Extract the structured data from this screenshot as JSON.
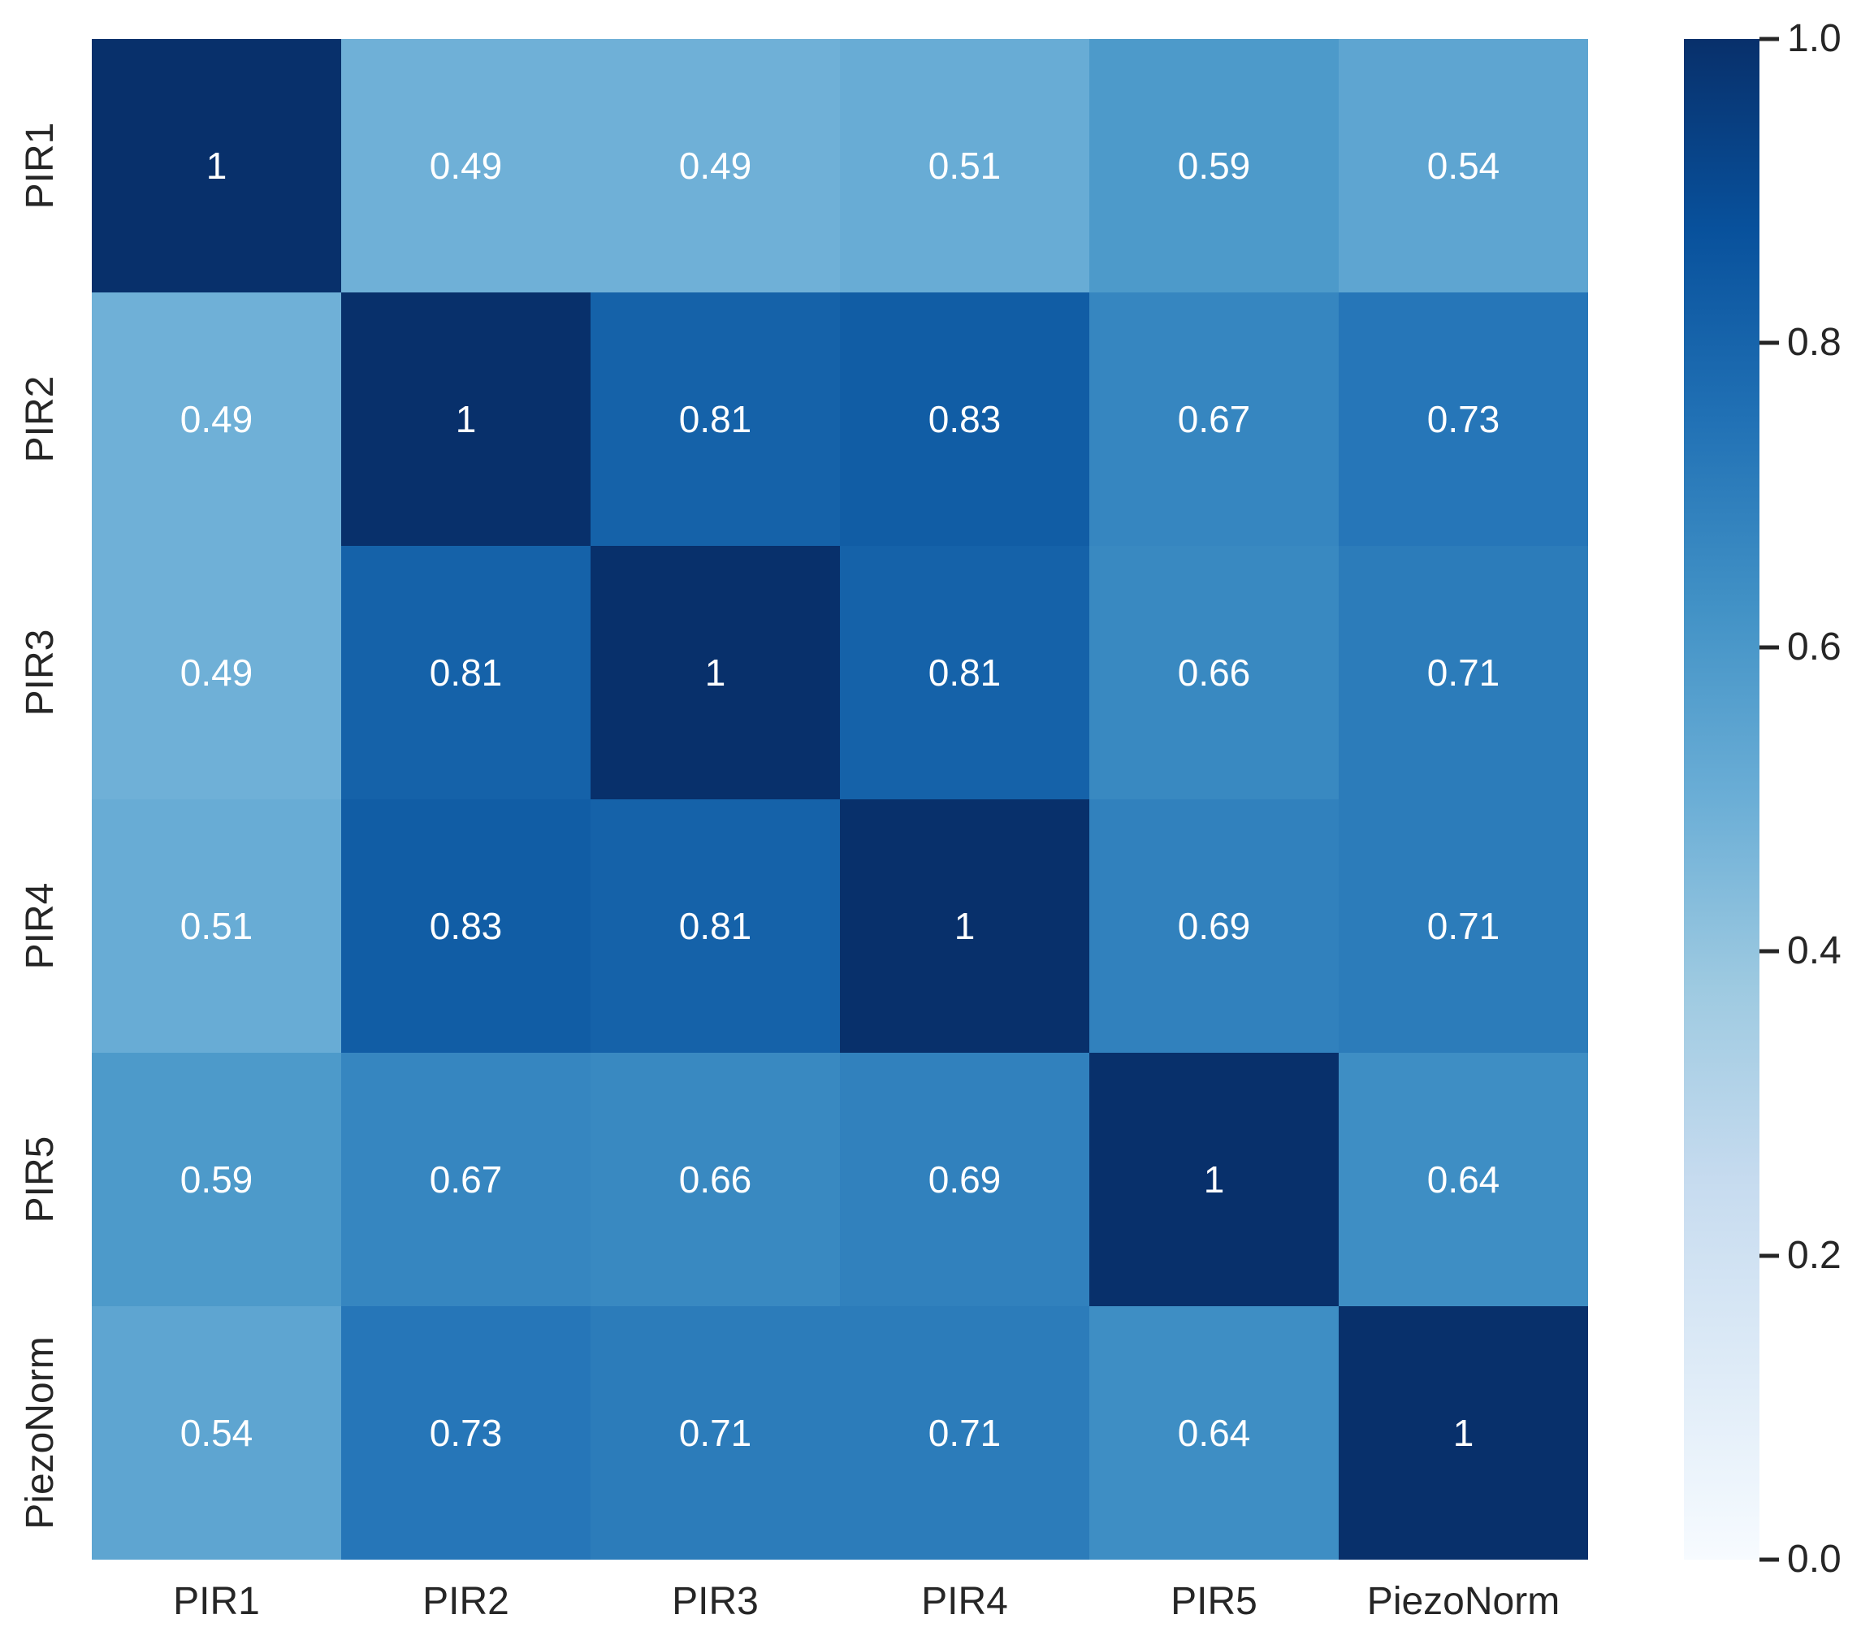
{
  "chart_data": {
    "type": "heatmap",
    "title": "",
    "xlabel": "",
    "ylabel": "",
    "categories": [
      "PIR1",
      "PIR2",
      "PIR3",
      "PIR4",
      "PIR5",
      "PiezoNorm"
    ],
    "series": [
      {
        "name": "PIR1",
        "values": [
          1,
          0.49,
          0.49,
          0.51,
          0.59,
          0.54
        ]
      },
      {
        "name": "PIR2",
        "values": [
          0.49,
          1,
          0.81,
          0.83,
          0.67,
          0.73
        ]
      },
      {
        "name": "PIR3",
        "values": [
          0.49,
          0.81,
          1,
          0.81,
          0.66,
          0.71
        ]
      },
      {
        "name": "PIR4",
        "values": [
          0.51,
          0.83,
          0.81,
          1,
          0.69,
          0.71
        ]
      },
      {
        "name": "PIR5",
        "values": [
          0.59,
          0.67,
          0.66,
          0.69,
          1,
          0.64
        ]
      },
      {
        "name": "PiezoNorm",
        "values": [
          0.54,
          0.73,
          0.71,
          0.71,
          0.64,
          1
        ]
      }
    ],
    "vmin": 0,
    "vmax": 1,
    "colormap": "Blues",
    "grid": false,
    "legend_position": "none",
    "colorbar": {
      "position": "right",
      "ticks": [
        {
          "value": 1.0,
          "label": "1.0"
        },
        {
          "value": 0.8,
          "label": "0.8"
        },
        {
          "value": 0.6,
          "label": "0.6"
        },
        {
          "value": 0.4,
          "label": "0.4"
        },
        {
          "value": 0.2,
          "label": "0.2"
        },
        {
          "value": 0.0,
          "label": "0.0"
        }
      ]
    },
    "colors": {
      "annotation_text": "#ffffff",
      "axis_tick_text": "#262626",
      "background": "#ffffff",
      "colormap_anchors": [
        {
          "v": 0.0,
          "c": "#f7fbff"
        },
        {
          "v": 0.125,
          "c": "#deebf7"
        },
        {
          "v": 0.25,
          "c": "#c6dbef"
        },
        {
          "v": 0.375,
          "c": "#9ecae1"
        },
        {
          "v": 0.5,
          "c": "#6baed6"
        },
        {
          "v": 0.625,
          "c": "#4292c6"
        },
        {
          "v": 0.75,
          "c": "#2171b5"
        },
        {
          "v": 0.875,
          "c": "#08519c"
        },
        {
          "v": 1.0,
          "c": "#08306b"
        }
      ]
    }
  }
}
